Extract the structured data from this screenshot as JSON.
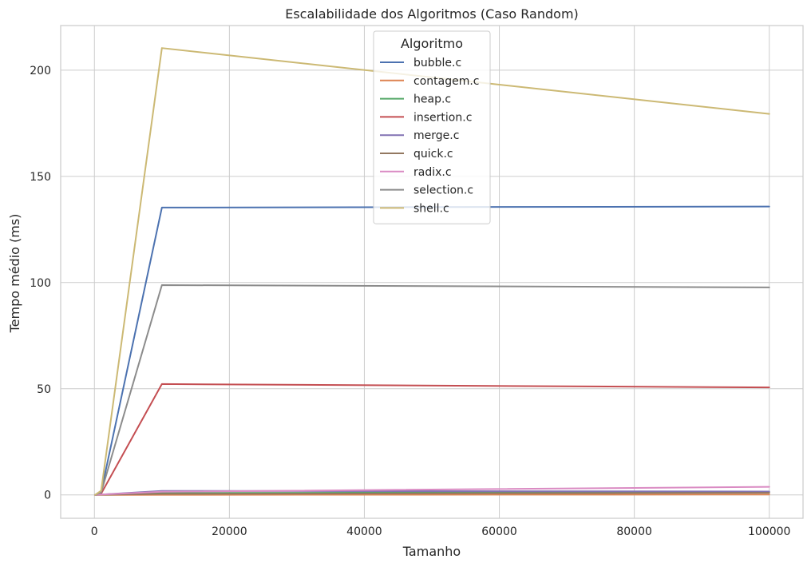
{
  "chart_data": {
    "type": "line",
    "title": "Escalabilidade dos Algoritmos (Caso Random)",
    "xlabel": "Tamanho",
    "ylabel": "Tempo médio (ms)",
    "xlim": [
      -5000,
      105000
    ],
    "ylim": [
      -11,
      221
    ],
    "xticks": [
      0,
      20000,
      40000,
      60000,
      80000,
      100000
    ],
    "yticks": [
      0,
      50,
      100,
      150,
      200
    ],
    "grid": true,
    "legend": {
      "title": "Algoritmo",
      "placement": "upper-center"
    },
    "x": [
      100,
      1000,
      10000,
      100000
    ],
    "series": [
      {
        "name": "bubble.c",
        "color": "#4c72b0",
        "values": [
          0.0,
          1.5,
          135.3,
          135.8
        ]
      },
      {
        "name": "contagem.c",
        "color": "#dd8452",
        "values": [
          0.0,
          0.0,
          0.05,
          0.2
        ]
      },
      {
        "name": "heap.c",
        "color": "#55a868",
        "values": [
          0.0,
          0.1,
          0.9,
          1.3
        ]
      },
      {
        "name": "insertion.c",
        "color": "#c44e52",
        "values": [
          0.0,
          0.6,
          52.2,
          50.6
        ]
      },
      {
        "name": "merge.c",
        "color": "#8172b3",
        "values": [
          0.0,
          0.2,
          1.9,
          1.6
        ]
      },
      {
        "name": "quick.c",
        "color": "#937860",
        "values": [
          0.0,
          0.1,
          0.5,
          1.0
        ]
      },
      {
        "name": "radix.c",
        "color": "#da8bc3",
        "values": [
          0.0,
          0.2,
          1.5,
          3.8
        ]
      },
      {
        "name": "selection.c",
        "color": "#8c8c8c",
        "values": [
          0.0,
          1.2,
          98.8,
          97.7
        ]
      },
      {
        "name": "shell.c",
        "color": "#ccb974",
        "values": [
          0.0,
          2.0,
          210.4,
          179.4
        ]
      }
    ]
  }
}
